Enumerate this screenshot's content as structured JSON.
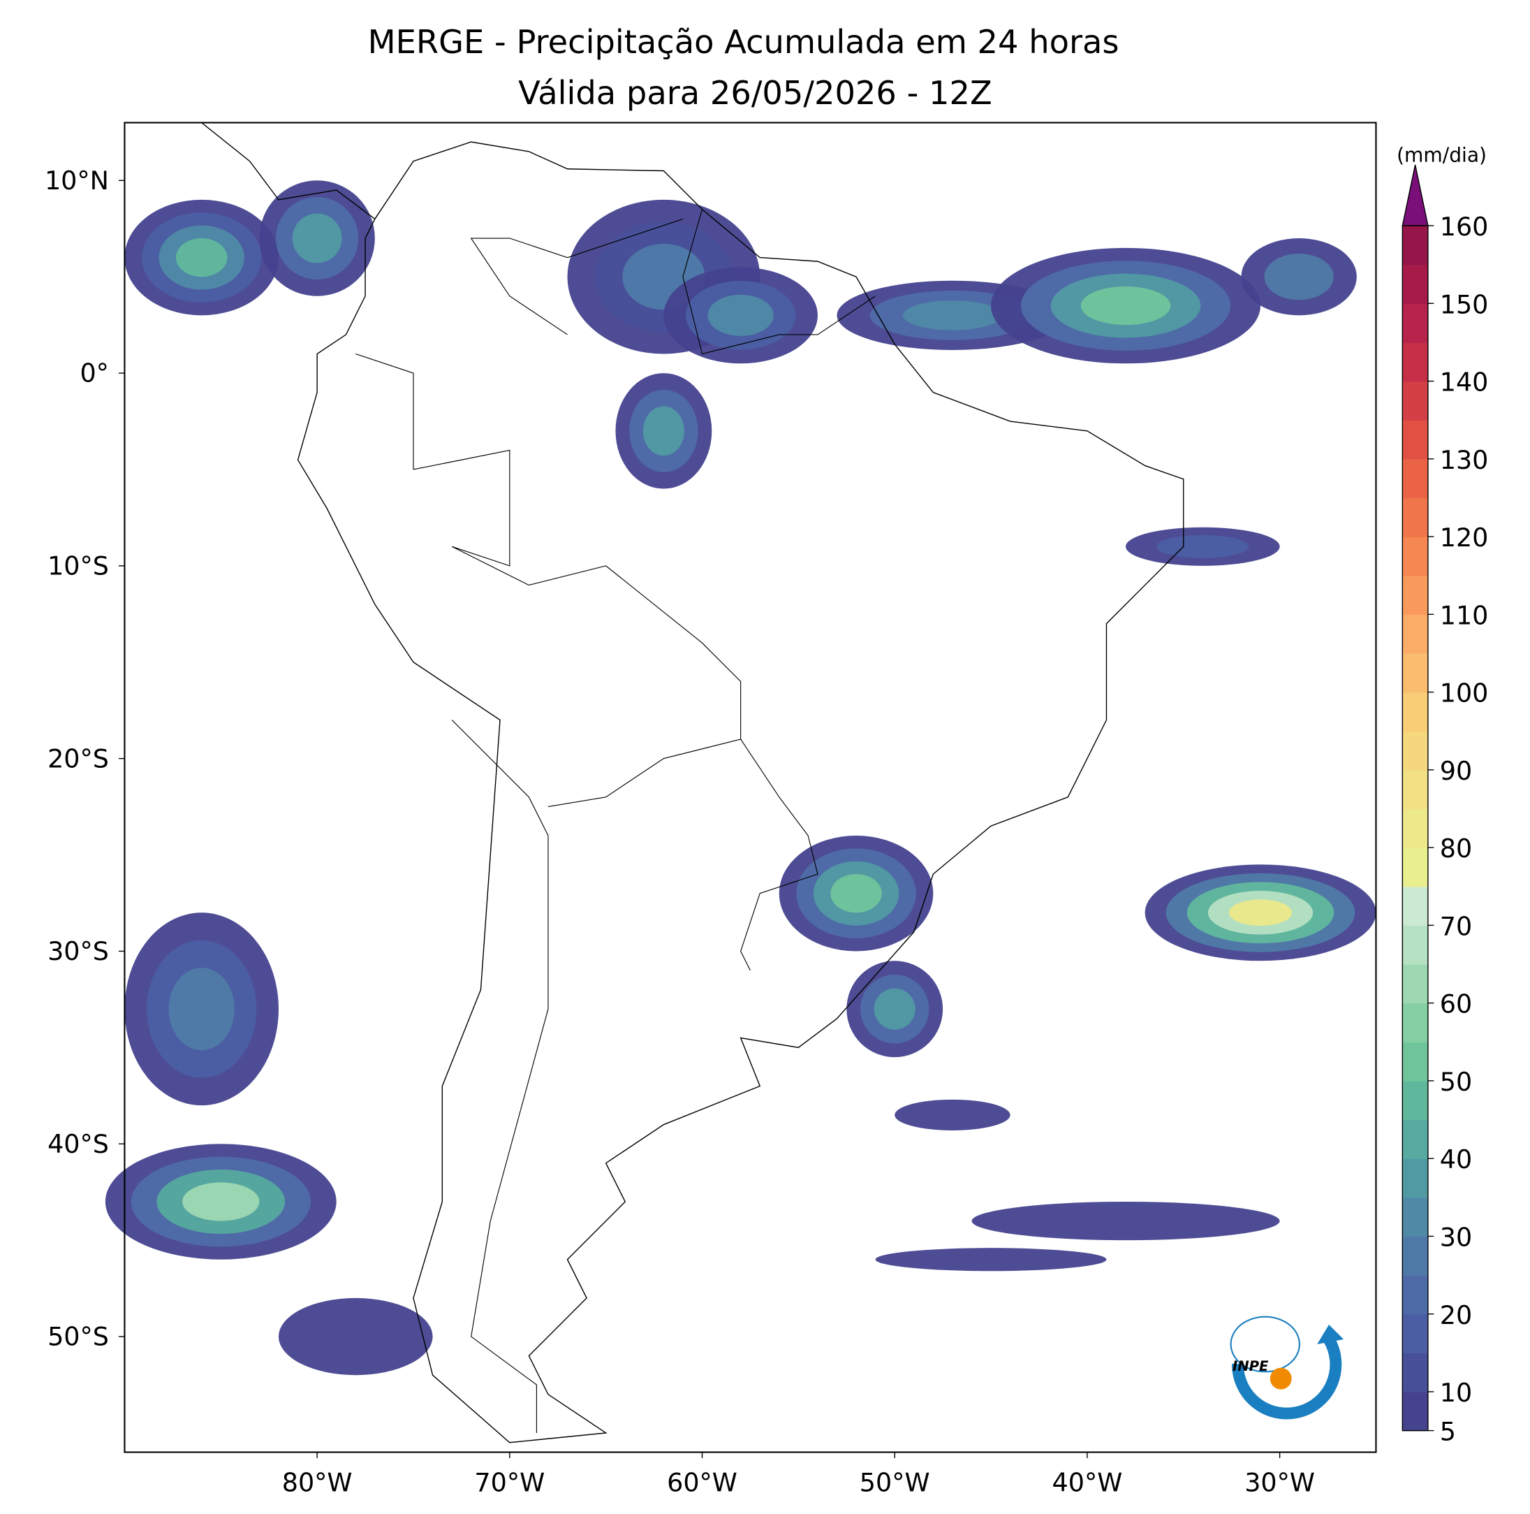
{
  "map": {
    "title": "MERGE - Precipitação Acumulada em 24 horas",
    "subtitle": "Válida para 26/05/2026 - 12Z",
    "xlim": [
      -90,
      -25
    ],
    "ylim": [
      -56,
      13
    ],
    "xticks": [
      {
        "value": -80,
        "label": "80°W"
      },
      {
        "value": -70,
        "label": "70°W"
      },
      {
        "value": -60,
        "label": "60°W"
      },
      {
        "value": -50,
        "label": "50°W"
      },
      {
        "value": -40,
        "label": "40°W"
      },
      {
        "value": -30,
        "label": "30°W"
      }
    ],
    "yticks": [
      {
        "value": 10,
        "label": "10°N"
      },
      {
        "value": 0,
        "label": "0°"
      },
      {
        "value": -10,
        "label": "10°S"
      },
      {
        "value": -20,
        "label": "20°S"
      },
      {
        "value": -30,
        "label": "30°S"
      },
      {
        "value": -40,
        "label": "40°S"
      },
      {
        "value": -50,
        "label": "50°S"
      }
    ],
    "colorbar": {
      "label": "(mm/dia)",
      "lim": [
        5,
        160
      ],
      "ticks": [
        5,
        10,
        20,
        30,
        40,
        50,
        60,
        70,
        80,
        90,
        100,
        110,
        120,
        130,
        140,
        150,
        160
      ],
      "colors": [
        "#45428e",
        "#48509a",
        "#4b5ea3",
        "#4e6ba8",
        "#4f7aa8",
        "#4f89a6",
        "#519aa3",
        "#56aa9f",
        "#60b89c",
        "#70c49c",
        "#86cfa5",
        "#9ed8b3",
        "#b6e1c3",
        "#cce9d4",
        "#e9ee8f",
        "#ede88a",
        "#f1e184",
        "#f5d87d",
        "#f8cd76",
        "#fabd6e",
        "#fbac66",
        "#f99a5c",
        "#f68752",
        "#f1754b",
        "#ea6346",
        "#e05144",
        "#d43f45",
        "#c62f48",
        "#b6234b",
        "#a71b4b",
        "#96164a"
      ],
      "extend_color": "#7a0f7a"
    },
    "logo_text": "INPE"
  }
}
